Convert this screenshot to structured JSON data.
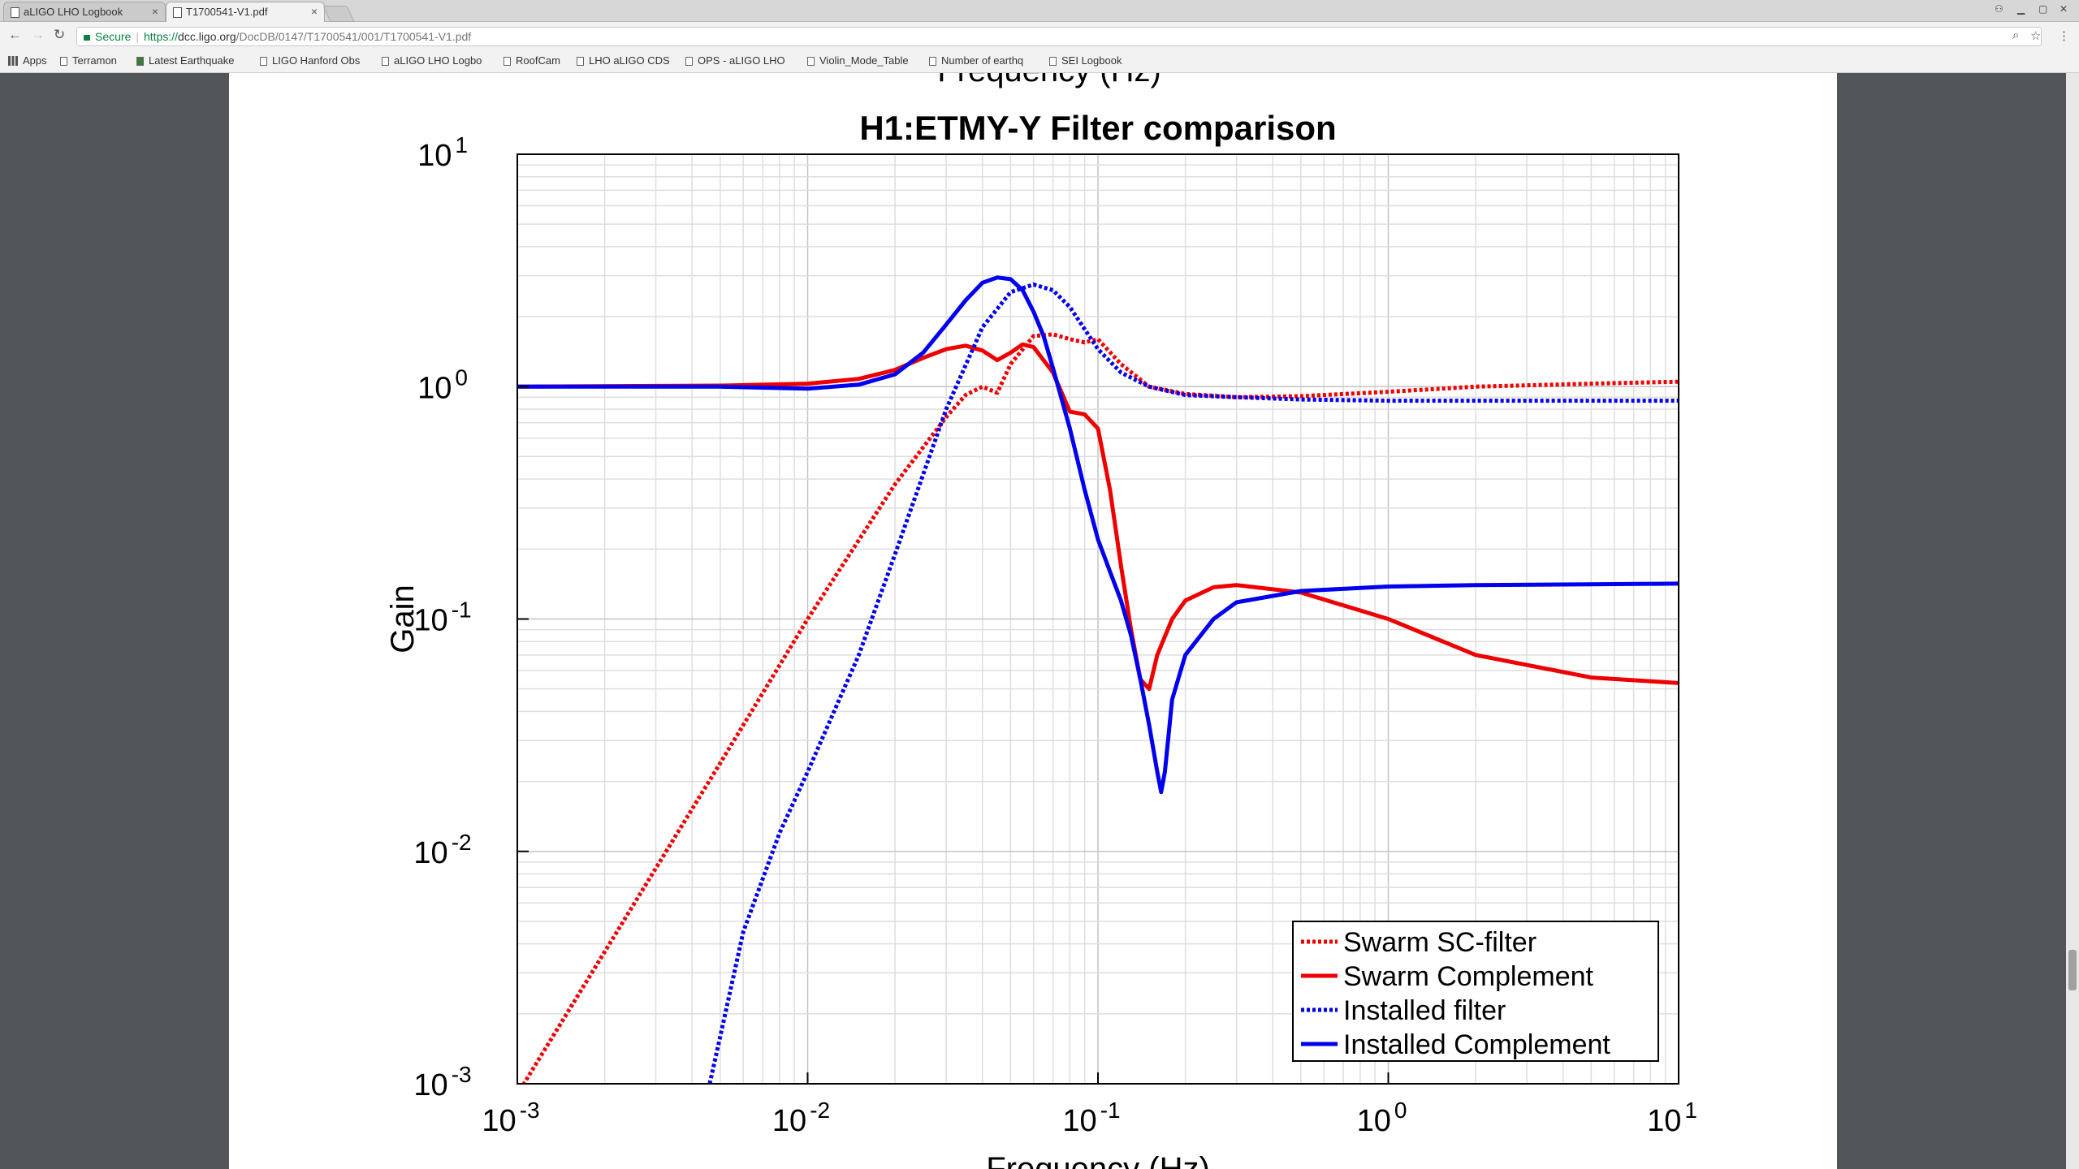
{
  "browser": {
    "tabs": [
      {
        "label": "aLIGO LHO Logbook",
        "active": false
      },
      {
        "label": "T1700541-V1.pdf",
        "active": true
      }
    ],
    "address": {
      "secure_label": "Secure",
      "scheme": "https://",
      "host": "dcc.ligo.org",
      "path": "/DocDB/0147/T1700541/001/T1700541-V1.pdf"
    },
    "bookmarks": [
      "Apps",
      "Terramon",
      "Latest Earthquake",
      "LIGO Hanford Obs",
      "aLIGO LHO Logbo",
      "RoofCam",
      "LHO aLIGO CDS",
      "OPS - aLIGO LHO",
      "Violin_Mode_Table",
      "Number of earthq",
      "SEI Logbook"
    ]
  },
  "pdf": {
    "prev_axis_label": "Frequency (Hz)"
  },
  "colors": {
    "red": "#ee0000",
    "blue": "#0000ee"
  },
  "chart_data": {
    "type": "line",
    "title": "H1:ETMY-Y Filter comparison",
    "xlabel": "Frequency (Hz)",
    "ylabel": "Gain",
    "x_scale": "log",
    "y_scale": "log",
    "xlim": [
      0.001,
      10
    ],
    "ylim": [
      0.001,
      10
    ],
    "x_ticks": [
      {
        "base": "10",
        "exp": "-3"
      },
      {
        "base": "10",
        "exp": "-2"
      },
      {
        "base": "10",
        "exp": "-1"
      },
      {
        "base": "10",
        "exp": "0"
      },
      {
        "base": "10",
        "exp": "1"
      }
    ],
    "y_ticks": [
      {
        "base": "10",
        "exp": "-3"
      },
      {
        "base": "10",
        "exp": "-2"
      },
      {
        "base": "10",
        "exp": "-1"
      },
      {
        "base": "10",
        "exp": "0"
      },
      {
        "base": "10",
        "exp": "1"
      }
    ],
    "grid": true,
    "legend_position": "bottom-right",
    "series": [
      {
        "name": "Swarm SC-filter",
        "color": "#ee0000",
        "style": "dotted",
        "x": [
          0.001,
          0.002,
          0.005,
          0.01,
          0.02,
          0.03,
          0.035,
          0.04,
          0.045,
          0.05,
          0.06,
          0.07,
          0.08,
          0.09,
          0.1,
          0.12,
          0.15,
          0.2,
          0.3,
          0.5,
          1,
          2,
          5,
          10
        ],
        "y": [
          0.0009,
          0.0037,
          0.024,
          0.1,
          0.38,
          0.74,
          0.92,
          1.0,
          0.94,
          1.25,
          1.65,
          1.68,
          1.6,
          1.55,
          1.6,
          1.25,
          1.0,
          0.93,
          0.9,
          0.91,
          0.95,
          1.0,
          1.03,
          1.05
        ]
      },
      {
        "name": "Swarm Complement",
        "color": "#ee0000",
        "style": "solid",
        "x": [
          0.001,
          0.005,
          0.01,
          0.015,
          0.02,
          0.025,
          0.03,
          0.035,
          0.04,
          0.045,
          0.05,
          0.055,
          0.06,
          0.07,
          0.08,
          0.09,
          0.1,
          0.11,
          0.12,
          0.13,
          0.14,
          0.15,
          0.16,
          0.18,
          0.2,
          0.25,
          0.3,
          0.5,
          1,
          2,
          5,
          10
        ],
        "y": [
          1.0,
          1.01,
          1.03,
          1.08,
          1.18,
          1.33,
          1.45,
          1.5,
          1.43,
          1.3,
          1.4,
          1.52,
          1.48,
          1.15,
          0.78,
          0.76,
          0.66,
          0.36,
          0.17,
          0.09,
          0.055,
          0.05,
          0.07,
          0.1,
          0.12,
          0.137,
          0.14,
          0.13,
          0.1,
          0.07,
          0.056,
          0.053
        ]
      },
      {
        "name": "Installed filter",
        "color": "#0000ee",
        "style": "dotted",
        "x": [
          0.0046,
          0.005,
          0.006,
          0.008,
          0.01,
          0.015,
          0.02,
          0.03,
          0.04,
          0.05,
          0.06,
          0.07,
          0.08,
          0.1,
          0.12,
          0.15,
          0.2,
          0.3,
          0.5,
          1,
          2,
          5,
          10
        ],
        "y": [
          0.001,
          0.0016,
          0.0045,
          0.012,
          0.022,
          0.07,
          0.19,
          0.8,
          1.8,
          2.55,
          2.75,
          2.6,
          2.2,
          1.45,
          1.15,
          1.0,
          0.92,
          0.9,
          0.88,
          0.87,
          0.87,
          0.87,
          0.87
        ]
      },
      {
        "name": "Installed Complement",
        "color": "#0000ee",
        "style": "solid",
        "x": [
          0.001,
          0.005,
          0.01,
          0.015,
          0.02,
          0.025,
          0.03,
          0.035,
          0.04,
          0.045,
          0.05,
          0.055,
          0.06,
          0.065,
          0.07,
          0.08,
          0.09,
          0.1,
          0.11,
          0.12,
          0.13,
          0.14,
          0.15,
          0.16,
          0.165,
          0.17,
          0.18,
          0.2,
          0.25,
          0.3,
          0.5,
          1,
          2,
          5,
          10
        ],
        "y": [
          1.0,
          1.0,
          0.98,
          1.02,
          1.13,
          1.4,
          1.85,
          2.35,
          2.8,
          2.95,
          2.9,
          2.6,
          2.1,
          1.65,
          1.2,
          0.66,
          0.36,
          0.22,
          0.16,
          0.12,
          0.085,
          0.055,
          0.035,
          0.022,
          0.018,
          0.022,
          0.045,
          0.07,
          0.1,
          0.118,
          0.132,
          0.138,
          0.14,
          0.141,
          0.142
        ]
      }
    ]
  }
}
